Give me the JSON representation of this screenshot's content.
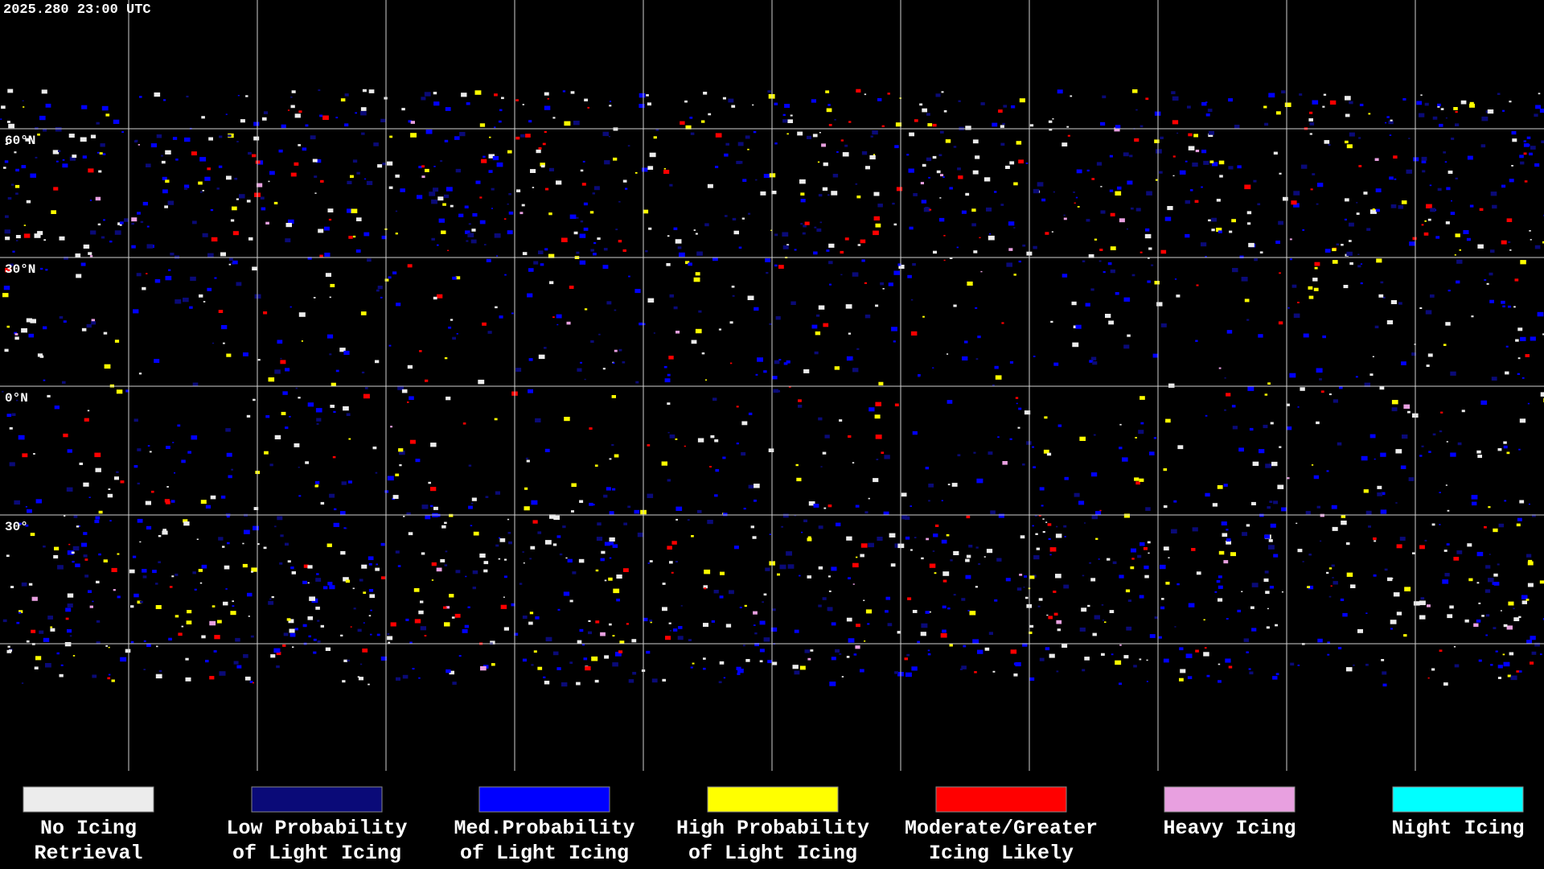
{
  "header": {
    "title": "2025.280 23:00 UTC"
  },
  "latitude_labels": [
    "60°N",
    "30°N",
    "0°N",
    "30°"
  ],
  "legend": [
    {
      "label": [
        "No Icing",
        "Retrieval"
      ],
      "color": "#ececec"
    },
    {
      "label": [
        "Low Probability",
        "of Light Icing"
      ],
      "color": "#0a0a78"
    },
    {
      "label": [
        "Med.Probability",
        "of Light Icing"
      ],
      "color": "#0000ff"
    },
    {
      "label": [
        "High Probability",
        "of Light Icing"
      ],
      "color": "#ffff00"
    },
    {
      "label": [
        "Moderate/Greater",
        "Icing Likely"
      ],
      "color": "#ff0000"
    },
    {
      "label": [
        "Heavy Icing"
      ],
      "color": "#e8a0e0"
    },
    {
      "label": [
        "Night Icing"
      ],
      "color": "#00ffff"
    }
  ]
}
